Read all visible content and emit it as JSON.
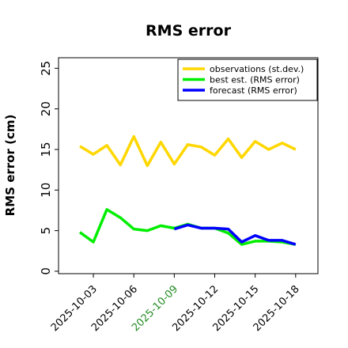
{
  "chart_data": {
    "type": "line",
    "title": "RMS error",
    "xlabel": "",
    "ylabel": "RMS error (cm)",
    "x": [
      "2025-10-02",
      "2025-10-03",
      "2025-10-04",
      "2025-10-05",
      "2025-10-06",
      "2025-10-07",
      "2025-10-08",
      "2025-10-09",
      "2025-10-10",
      "2025-10-11",
      "2025-10-12",
      "2025-10-13",
      "2025-10-14",
      "2025-10-15",
      "2025-10-16",
      "2025-10-17",
      "2025-10-18"
    ],
    "xticks": [
      "2025-10-03",
      "2025-10-06",
      "2025-10-09",
      "2025-10-12",
      "2025-10-15",
      "2025-10-18"
    ],
    "highlight_tick": "2025-10-09",
    "highlight_color": "#228b22",
    "yticks": [
      0,
      5,
      10,
      15,
      20,
      25
    ],
    "ylim": [
      -0.3,
      26.3
    ],
    "grid": false,
    "legend_position": "top-right",
    "series": [
      {
        "name": "observations (st.dev.)",
        "color": "#ffd700",
        "x": [
          "2025-10-02",
          "2025-10-03",
          "2025-10-04",
          "2025-10-05",
          "2025-10-06",
          "2025-10-07",
          "2025-10-08",
          "2025-10-09",
          "2025-10-10",
          "2025-10-11",
          "2025-10-12",
          "2025-10-13",
          "2025-10-14",
          "2025-10-15",
          "2025-10-16",
          "2025-10-17",
          "2025-10-18"
        ],
        "values": [
          15.4,
          14.4,
          15.5,
          13.1,
          16.6,
          13.0,
          15.9,
          13.2,
          15.6,
          15.3,
          14.3,
          16.3,
          14.0,
          16.0,
          15.0,
          15.8,
          15.0
        ]
      },
      {
        "name": "best est. (RMS error)",
        "color": "#00ee00",
        "x": [
          "2025-10-02",
          "2025-10-03",
          "2025-10-04",
          "2025-10-05",
          "2025-10-06",
          "2025-10-07",
          "2025-10-08",
          "2025-10-09",
          "2025-10-10",
          "2025-10-11",
          "2025-10-12",
          "2025-10-13",
          "2025-10-14",
          "2025-10-15",
          "2025-10-16",
          "2025-10-17",
          "2025-10-18"
        ],
        "values": [
          4.8,
          3.6,
          7.6,
          6.6,
          5.2,
          5.0,
          5.6,
          5.3,
          5.8,
          5.3,
          5.3,
          4.7,
          3.3,
          3.7,
          3.7,
          3.6,
          3.3
        ]
      },
      {
        "name": "forecast (RMS error)",
        "color": "#0000ff",
        "x": [
          "2025-10-09",
          "2025-10-10",
          "2025-10-11",
          "2025-10-12",
          "2025-10-13",
          "2025-10-14",
          "2025-10-15",
          "2025-10-16",
          "2025-10-17",
          "2025-10-18"
        ],
        "values": [
          5.2,
          5.7,
          5.3,
          5.3,
          5.2,
          3.6,
          4.4,
          3.8,
          3.8,
          3.3
        ]
      }
    ]
  }
}
